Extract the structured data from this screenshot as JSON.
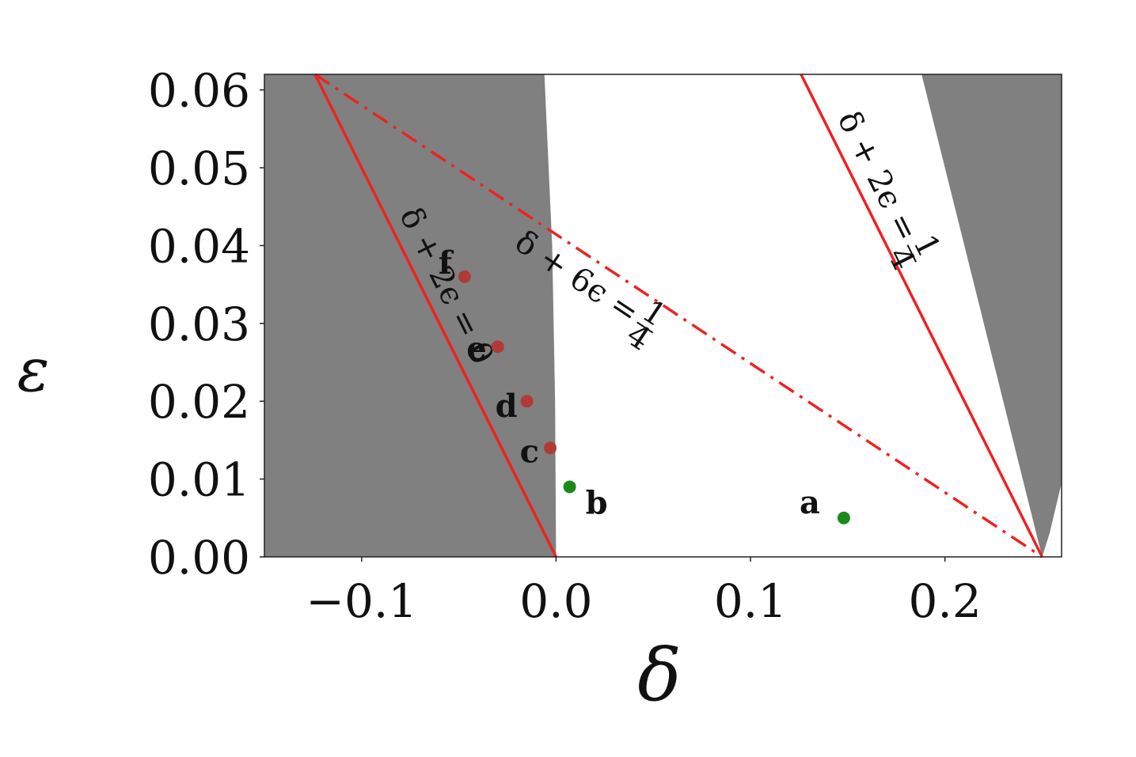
{
  "chart_data": {
    "type": "scatter",
    "xlabel": "δ",
    "ylabel": "ε",
    "xlim": [
      -0.15,
      0.26
    ],
    "ylim": [
      0.0,
      0.062
    ],
    "xticks": [
      {
        "value": -0.1,
        "label": "−0.1"
      },
      {
        "value": 0.0,
        "label": "0.0"
      },
      {
        "value": 0.1,
        "label": "0.1"
      },
      {
        "value": 0.2,
        "label": "0.2"
      }
    ],
    "yticks": [
      {
        "value": 0.0,
        "label": "0.00"
      },
      {
        "value": 0.01,
        "label": "0.01"
      },
      {
        "value": 0.02,
        "label": "0.02"
      },
      {
        "value": 0.03,
        "label": "0.03"
      },
      {
        "value": 0.04,
        "label": "0.04"
      },
      {
        "value": 0.05,
        "label": "0.05"
      },
      {
        "value": 0.06,
        "label": "0.06"
      }
    ],
    "regions": [
      {
        "polygon": [
          [
            -0.15,
            0.0
          ],
          [
            0.0,
            0.0
          ],
          [
            -0.0005,
            0.02
          ],
          [
            -0.002,
            0.04
          ],
          [
            -0.006,
            0.062
          ],
          [
            -0.15,
            0.062
          ]
        ],
        "color": "#808080"
      },
      {
        "polygon": [
          [
            0.25,
            0.0
          ],
          [
            0.2538,
            0.003
          ],
          [
            0.26,
            0.0095
          ],
          [
            0.26,
            0.062
          ],
          [
            0.188,
            0.062
          ]
        ],
        "color": "#808080"
      }
    ],
    "lines": [
      {
        "label_parts": [
          "δ + 2ϵ = 0"
        ],
        "style": "solid",
        "color": "#ee2222",
        "points": [
          [
            -0.124,
            0.062
          ],
          [
            0.0,
            0.0
          ]
        ]
      },
      {
        "label_parts": [
          "δ + 2ϵ = ",
          "1",
          "4"
        ],
        "style": "solid",
        "color": "#ee2222",
        "points": [
          [
            0.126,
            0.062
          ],
          [
            0.25,
            0.0
          ]
        ]
      },
      {
        "label_parts": [
          "δ + 6ϵ = ",
          "1",
          "4"
        ],
        "style": "dashdot",
        "color": "#ee2222",
        "points": [
          [
            -0.124,
            0.062
          ],
          [
            0.25,
            0.0
          ]
        ]
      }
    ],
    "points": [
      {
        "label": "a",
        "x": 0.148,
        "y": 0.005,
        "color": "#1a8a1a"
      },
      {
        "label": "b",
        "x": 0.007,
        "y": 0.009,
        "color": "#1a8a1a"
      },
      {
        "label": "c",
        "x": -0.003,
        "y": 0.014,
        "color": "#b03a3a"
      },
      {
        "label": "d",
        "x": -0.015,
        "y": 0.02,
        "color": "#b03a3a"
      },
      {
        "label": "e",
        "x": -0.03,
        "y": 0.027,
        "color": "#b03a3a"
      },
      {
        "label": "f",
        "x": -0.047,
        "y": 0.036,
        "color": "#b03a3a"
      }
    ]
  }
}
